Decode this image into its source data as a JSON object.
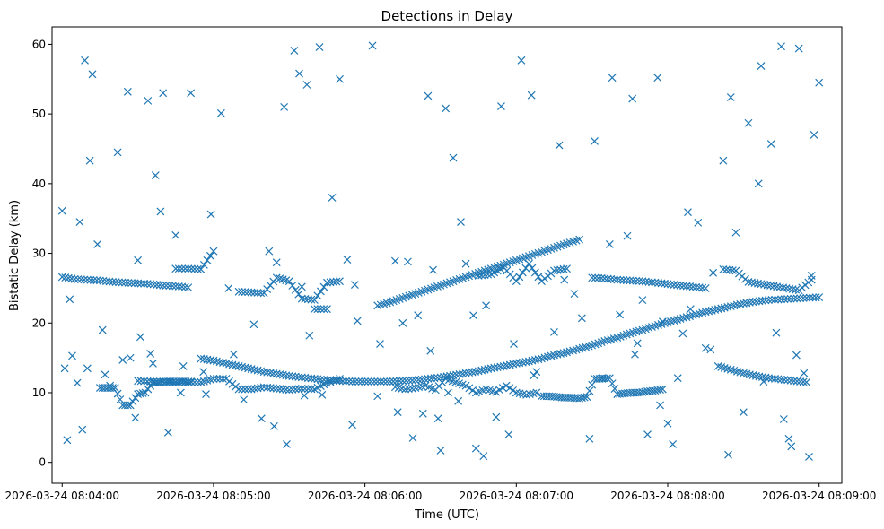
{
  "chart_data": {
    "type": "scatter",
    "title": "Detections in Delay",
    "xlabel": "Time (UTC)",
    "ylabel": "Bistatic Delay (km)",
    "marker": "x",
    "color": "#1f77b4",
    "x_unit": "seconds after 2026-03-24 08:04:00",
    "xlim": [
      -4,
      309
    ],
    "ylim": [
      -3,
      62.5
    ],
    "xticks": [
      0,
      60,
      120,
      180,
      240,
      300
    ],
    "xtick_labels": [
      "2026-03-24 08:04:00",
      "2026-03-24 08:05:00",
      "2026-03-24 08:06:00",
      "2026-03-24 08:07:00",
      "2026-03-24 08:08:00",
      "2026-03-24 08:09:00"
    ],
    "yticks": [
      0,
      10,
      20,
      30,
      40,
      50,
      60
    ],
    "ytick_labels": [
      "0",
      "10",
      "20",
      "30",
      "40",
      "50",
      "60"
    ],
    "tracks": [
      {
        "name": "track-a",
        "x": [
          0,
          5,
          10,
          15,
          20,
          25,
          30,
          35,
          40,
          45,
          50,
          55,
          60,
          65,
          70,
          75,
          80,
          85,
          90,
          95,
          100,
          105,
          110,
          115,
          120,
          125,
          130,
          135,
          140,
          145,
          150,
          155,
          160,
          165,
          170,
          175,
          180,
          185,
          190,
          195,
          200,
          205,
          210,
          215,
          220,
          225,
          230,
          235,
          240,
          245,
          250,
          255,
          260,
          265,
          270,
          275,
          280,
          285,
          290,
          295,
          300
        ],
        "y": [
          26.6,
          26.3,
          26.2,
          26.1,
          25.9,
          25.8,
          25.7,
          25.6,
          25.4,
          25.3,
          25.1,
          14.9,
          14.6,
          14.2,
          13.8,
          13.4,
          13.0,
          12.7,
          12.4,
          12.2,
          12.0,
          11.8,
          11.7,
          11.6,
          11.6,
          11.6,
          11.6,
          11.7,
          11.8,
          12.0,
          12.2,
          12.5,
          12.8,
          13.1,
          13.5,
          13.8,
          14.2,
          14.5,
          14.9,
          15.4,
          15.8,
          16.3,
          16.8,
          17.4,
          17.9,
          18.5,
          19.0,
          19.6,
          20.1,
          20.6,
          21.1,
          21.6,
          22.0,
          22.4,
          22.8,
          23.1,
          23.3,
          23.4,
          23.5,
          23.6,
          23.7
        ]
      },
      {
        "name": "track-b",
        "x": [
          125,
          130,
          135,
          140,
          145,
          150,
          155,
          160,
          165,
          170,
          175,
          180,
          185,
          190,
          195,
          200,
          205
        ],
        "y": [
          22.5,
          23.0,
          23.6,
          24.2,
          24.8,
          25.4,
          26.0,
          26.6,
          27.2,
          27.8,
          28.4,
          29.0,
          29.6,
          30.2,
          30.8,
          31.4,
          32.0
        ]
      },
      {
        "name": "track-c",
        "x": [
          210,
          215,
          220,
          225,
          230,
          235,
          240,
          245,
          250,
          255,
          260,
          265,
          270,
          275,
          280,
          285,
          290,
          295
        ],
        "y": [
          26.5,
          26.4,
          26.2,
          26.1,
          26.0,
          25.8,
          25.6,
          25.4,
          25.2,
          25.0,
          13.8,
          13.3,
          12.8,
          12.4,
          12.1,
          11.9,
          11.7,
          11.5
        ]
      },
      {
        "name": "track-d",
        "x": [
          30,
          35,
          40,
          45,
          50,
          55,
          60,
          65,
          70,
          75,
          80,
          85,
          90,
          95,
          100,
          105,
          110
        ],
        "y": [
          11.7,
          11.6,
          11.6,
          11.5,
          11.5,
          11.5,
          12.0,
          12.0,
          10.5,
          10.5,
          10.8,
          10.6,
          10.4,
          10.6,
          10.5,
          11.4,
          12.0
        ]
      },
      {
        "name": "track-e",
        "x": [
          70,
          75,
          80,
          85,
          90,
          95,
          100,
          105,
          110
        ],
        "y": [
          24.5,
          24.4,
          24.3,
          26.5,
          26.0,
          23.5,
          23.3,
          25.8,
          26.0
        ]
      },
      {
        "name": "track-f",
        "x": [
          15,
          18,
          21,
          24,
          27,
          30,
          33,
          36,
          39,
          42,
          45,
          48,
          51
        ],
        "y": [
          10.7,
          10.7,
          10.7,
          8.2,
          8.2,
          9.8,
          10.0,
          11.5,
          11.5,
          11.6,
          11.6,
          11.6,
          11.6
        ]
      },
      {
        "name": "track-g",
        "x": [
          190,
          193,
          196,
          199,
          202,
          205,
          208,
          211,
          214,
          217,
          220,
          223,
          226,
          229,
          232,
          235,
          238
        ],
        "y": [
          9.5,
          9.5,
          9.4,
          9.3,
          9.3,
          9.2,
          9.4,
          12.0,
          12.0,
          12.1,
          9.8,
          9.9,
          10.0,
          10.0,
          10.2,
          10.3,
          10.5
        ]
      },
      {
        "name": "track-h",
        "x": [
          132,
          136,
          140,
          144,
          148,
          152,
          156,
          160,
          164,
          168,
          172,
          176,
          180,
          184,
          188
        ],
        "y": [
          10.8,
          10.5,
          10.7,
          11.0,
          10.4,
          12.0,
          11.5,
          11.0,
          10.0,
          10.5,
          10.1,
          11.0,
          10.0,
          9.7,
          10.0
        ]
      },
      {
        "name": "track-i",
        "x": [
          45,
          50,
          55,
          60,
          95,
          100,
          105,
          165,
          170,
          175,
          180,
          185,
          190,
          195,
          200
        ],
        "y": [
          27.8,
          27.8,
          27.7,
          30.3,
          25.2,
          22.0,
          22.0,
          26.8,
          27.0,
          28.0,
          26.0,
          28.5,
          26.0,
          27.5,
          27.8
        ]
      },
      {
        "name": "track-j",
        "x": [
          262,
          267,
          272,
          277,
          282,
          287,
          292,
          297
        ],
        "y": [
          27.7,
          27.5,
          25.9,
          25.6,
          25.3,
          25.0,
          24.7,
          26.2
        ]
      }
    ],
    "x": [
      0,
      2,
      4,
      7,
      9,
      11,
      12,
      14,
      22,
      26,
      30,
      34,
      37,
      39,
      40,
      42,
      45,
      51,
      59,
      63,
      82,
      85,
      88,
      92,
      94,
      97,
      102,
      107,
      110,
      113,
      116,
      123,
      132,
      137,
      141,
      145,
      147,
      150,
      152,
      155,
      158,
      160,
      163,
      167,
      174,
      182,
      186,
      197,
      211,
      218,
      224,
      226,
      228,
      232,
      236,
      240,
      242,
      244,
      248,
      252,
      255,
      262,
      265,
      272,
      277,
      281,
      285,
      289,
      292,
      296,
      298,
      300,
      1,
      3,
      6,
      10,
      16,
      19,
      24,
      27,
      31,
      35,
      47,
      56,
      66,
      72,
      79,
      84,
      96,
      103,
      115,
      125,
      133,
      139,
      143,
      149,
      153,
      164,
      172,
      179,
      187,
      195,
      203,
      209,
      214,
      221,
      230,
      238,
      246,
      257,
      264,
      270,
      278,
      283,
      288,
      294,
      8,
      17,
      29,
      36,
      48,
      57,
      68,
      76,
      89,
      98,
      117,
      126,
      135,
      146,
      157,
      168,
      177,
      188,
      199,
      206,
      217,
      227,
      237,
      249,
      258,
      267,
      276,
      286,
      291,
      297
    ],
    "y": [
      36.1,
      3.2,
      15.3,
      34.5,
      57.7,
      43.3,
      55.7,
      31.3,
      44.5,
      53.2,
      29.0,
      51.9,
      41.2,
      36.0,
      53.0,
      4.3,
      32.6,
      53.0,
      35.6,
      50.1,
      30.3,
      28.7,
      51.0,
      59.1,
      55.8,
      54.2,
      59.6,
      38.0,
      55.0,
      29.1,
      25.5,
      59.8,
      28.9,
      28.8,
      21.1,
      52.6,
      27.6,
      1.7,
      50.8,
      43.7,
      34.5,
      28.5,
      21.1,
      0.9,
      51.1,
      57.7,
      52.7,
      45.5,
      46.1,
      55.2,
      32.5,
      52.2,
      17.1,
      4.0,
      55.2,
      5.6,
      2.6,
      12.1,
      35.9,
      34.4,
      16.4,
      43.3,
      52.4,
      48.7,
      56.9,
      45.7,
      59.7,
      2.3,
      59.4,
      0.8,
      47.0,
      54.5,
      13.5,
      23.4,
      11.4,
      13.5,
      19.0,
      11.0,
      14.7,
      15.0,
      18.0,
      15.6,
      10.0,
      13.0,
      25.0,
      9.0,
      6.3,
      5.2,
      9.6,
      9.7,
      5.4,
      9.5,
      7.2,
      3.5,
      7.0,
      6.3,
      10.0,
      2.0,
      6.5,
      17.0,
      12.5,
      18.7,
      24.2,
      3.4,
      12.1,
      21.2,
      23.3,
      20.2,
      18.5,
      16.2,
      1.1,
      7.2,
      11.6,
      18.6,
      3.4,
      12.8,
      4.7,
      12.6,
      6.4,
      14.2,
      13.8,
      9.8,
      15.5,
      19.8,
      2.6,
      18.2,
      20.3,
      17.0,
      20.0,
      16.0,
      8.8,
      22.5,
      4.0,
      13.0,
      26.2,
      20.7,
      31.3,
      15.5,
      8.2,
      22.0,
      27.2,
      33.0,
      40.0,
      6.2,
      15.4,
      26.8
    ]
  }
}
